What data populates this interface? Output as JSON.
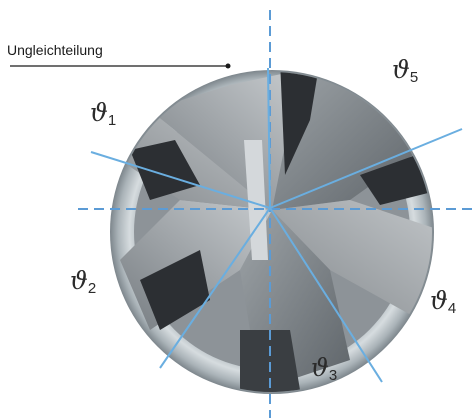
{
  "callout": {
    "label": "Ungleichteilung"
  },
  "angles": [
    {
      "symbol": "ϑ",
      "index": "1"
    },
    {
      "symbol": "ϑ",
      "index": "2"
    },
    {
      "symbol": "ϑ",
      "index": "3"
    },
    {
      "symbol": "ϑ",
      "index": "4"
    },
    {
      "symbol": "ϑ",
      "index": "5"
    }
  ],
  "colors": {
    "axis_line": "#5b9bd5",
    "division_line": "#6aaee0",
    "tool_outer": "#b9c2c7",
    "tool_steel": "#7e8489",
    "tool_dark": "#2c2f33",
    "callout_line": "#1a1a1a"
  }
}
